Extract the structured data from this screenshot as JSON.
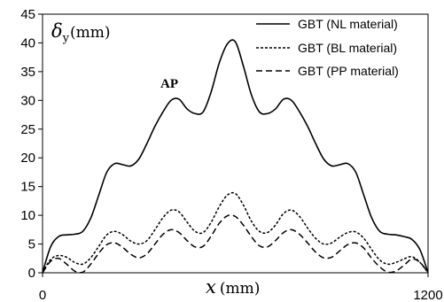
{
  "chart_data": {
    "type": "line",
    "xlabel": {
      "symbol": "x",
      "unit": "(mm)"
    },
    "ylabel": {
      "symbol": "δ",
      "subscript": "y",
      "unit": "(mm)"
    },
    "xlim": [
      0,
      1200
    ],
    "ylim": [
      0,
      45
    ],
    "x_ticks": [
      0,
      1200
    ],
    "y_ticks": [
      0,
      5,
      10,
      15,
      20,
      25,
      30,
      35,
      40,
      45
    ],
    "grid": false,
    "legend_placement": "top-right",
    "annotations": [
      {
        "text": "AP",
        "x": 400,
        "y": 33
      }
    ],
    "series": [
      {
        "name": "GBT (NL material)",
        "style": "solid",
        "color": "#000000",
        "x": [
          0,
          25,
          50,
          75,
          100,
          125,
          150,
          175,
          200,
          225,
          250,
          275,
          300,
          325,
          350,
          375,
          400,
          425,
          450,
          475,
          500,
          525,
          550,
          575,
          600,
          625,
          650,
          675,
          700,
          725,
          750,
          775,
          800,
          825,
          850,
          875,
          900,
          925,
          950,
          975,
          1000,
          1025,
          1050,
          1075,
          1100,
          1125,
          1150,
          1175,
          1200
        ],
        "y": [
          0,
          4.5,
          6.3,
          6.6,
          6.7,
          7.2,
          9.5,
          13.5,
          17.5,
          19.0,
          18.8,
          18.6,
          19.8,
          22.5,
          25.5,
          28.0,
          30.0,
          30.2,
          28.5,
          27.7,
          28.0,
          31.5,
          36.5,
          39.8,
          40.2,
          36.0,
          31.0,
          28.0,
          27.7,
          28.5,
          30.2,
          30.0,
          28.0,
          25.5,
          22.5,
          19.8,
          18.6,
          18.8,
          19.0,
          17.5,
          13.5,
          9.5,
          7.2,
          6.7,
          6.6,
          6.3,
          5.8,
          4.0,
          0
        ]
      },
      {
        "name": "GBT (BL material)",
        "style": "short-dash",
        "color": "#000000",
        "x": [
          0,
          25,
          50,
          75,
          100,
          125,
          150,
          175,
          200,
          225,
          250,
          275,
          300,
          325,
          350,
          375,
          400,
          425,
          450,
          475,
          500,
          525,
          550,
          575,
          600,
          625,
          650,
          675,
          700,
          725,
          750,
          775,
          800,
          825,
          850,
          875,
          900,
          925,
          950,
          975,
          1000,
          1025,
          1050,
          1075,
          1100,
          1125,
          1150,
          1175,
          1200
        ],
        "y": [
          0,
          2.3,
          3.0,
          2.7,
          1.8,
          1.5,
          2.6,
          4.6,
          6.6,
          7.2,
          6.6,
          5.5,
          5.0,
          5.6,
          7.5,
          9.6,
          10.9,
          10.6,
          8.8,
          7.2,
          7.0,
          8.8,
          11.5,
          13.5,
          13.8,
          11.8,
          9.0,
          7.2,
          7.0,
          8.3,
          10.3,
          10.9,
          9.8,
          7.8,
          6.0,
          5.0,
          5.2,
          6.2,
          7.0,
          7.1,
          6.0,
          4.0,
          2.2,
          1.5,
          1.8,
          2.4,
          2.8,
          1.8,
          0
        ]
      },
      {
        "name": "GBT (PP material)",
        "style": "dash",
        "color": "#000000",
        "x": [
          0,
          25,
          50,
          75,
          100,
          125,
          150,
          175,
          200,
          225,
          250,
          275,
          300,
          325,
          350,
          375,
          400,
          425,
          450,
          475,
          500,
          525,
          550,
          575,
          600,
          625,
          650,
          675,
          700,
          725,
          750,
          775,
          800,
          825,
          850,
          875,
          900,
          925,
          950,
          975,
          1000,
          1025,
          1050,
          1075,
          1100,
          1125,
          1150,
          1175,
          1200
        ],
        "y": [
          0,
          2.0,
          2.5,
          1.5,
          0.3,
          0.1,
          1.5,
          3.4,
          4.9,
          5.2,
          4.4,
          3.2,
          2.6,
          3.3,
          5.0,
          6.7,
          7.5,
          7.0,
          5.6,
          4.5,
          4.6,
          6.4,
          8.6,
          9.9,
          9.8,
          8.3,
          6.3,
          4.7,
          4.5,
          5.6,
          7.0,
          7.5,
          6.7,
          5.2,
          3.6,
          2.6,
          2.7,
          3.8,
          4.9,
          5.2,
          4.3,
          2.5,
          1.0,
          0.1,
          0.3,
          1.3,
          2.4,
          1.8,
          0
        ]
      }
    ]
  }
}
